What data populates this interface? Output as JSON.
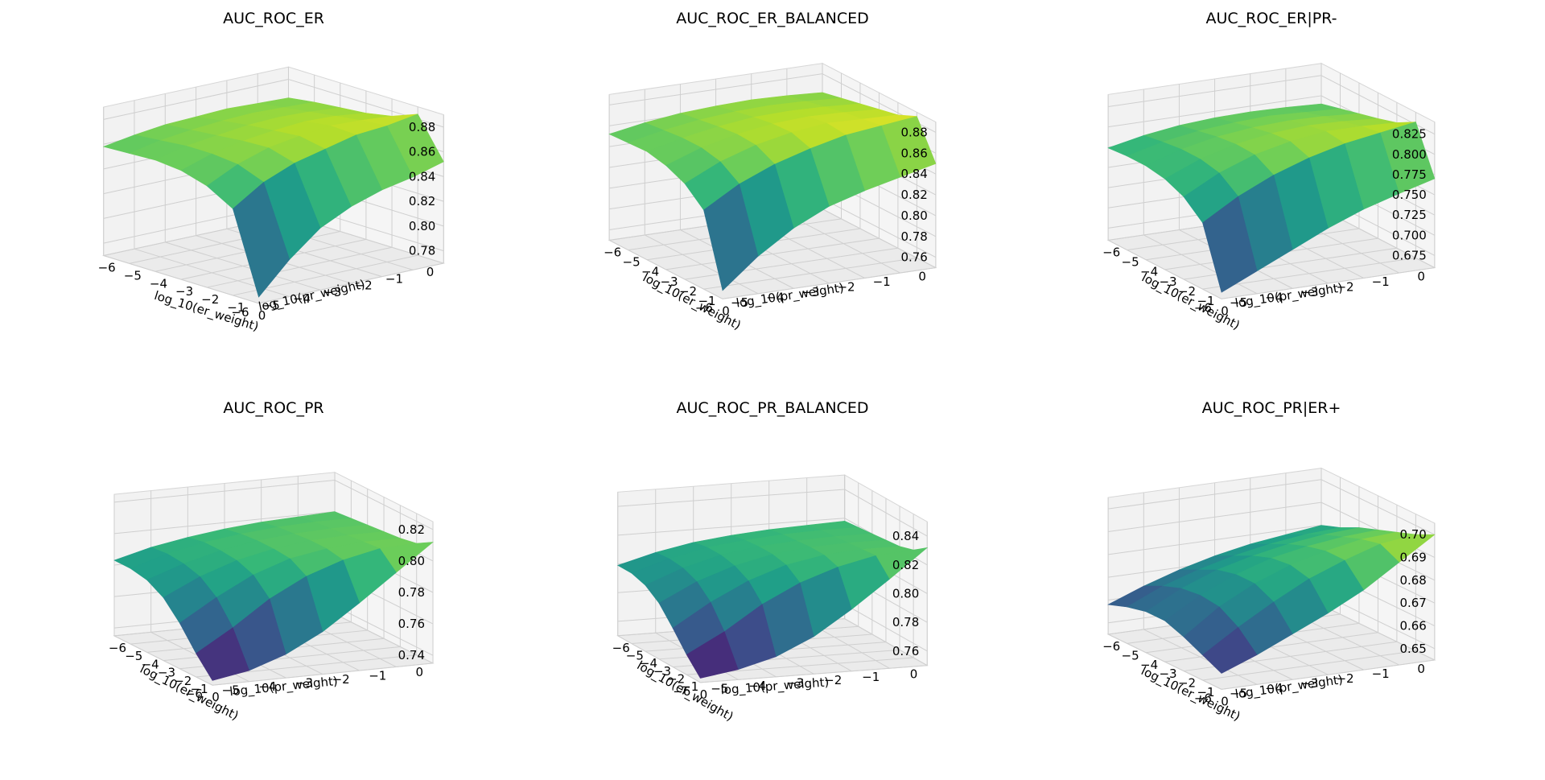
{
  "chart_data": [
    {
      "type": "surface",
      "title": "AUC_ROC_ER",
      "xlabel": "log_10(er_weight)",
      "ylabel": "log_10(pr_weight)",
      "x_ticks": [
        -6,
        -5,
        -4,
        -3,
        -2,
        -1,
        0
      ],
      "y_ticks": [
        0,
        -1,
        -2,
        -3,
        -4,
        -5,
        -6
      ],
      "z_ticks": [
        0.78,
        0.8,
        0.82,
        0.84,
        0.86,
        0.88
      ],
      "zlim": [
        0.77,
        0.89
      ],
      "grid": true,
      "colormap": "viridis",
      "x": [
        -6,
        -5,
        -4,
        -3,
        -2,
        -1,
        0
      ],
      "y": [
        0,
        -1,
        -2,
        -3,
        -4,
        -5,
        -6
      ],
      "z": [
        [
          0.865,
          0.868,
          0.87,
          0.872,
          0.876,
          0.884,
          0.852
        ],
        [
          0.866,
          0.869,
          0.872,
          0.875,
          0.878,
          0.88,
          0.845
        ],
        [
          0.867,
          0.87,
          0.873,
          0.876,
          0.879,
          0.878,
          0.84
        ],
        [
          0.866,
          0.869,
          0.872,
          0.874,
          0.876,
          0.872,
          0.832
        ],
        [
          0.865,
          0.867,
          0.869,
          0.871,
          0.872,
          0.866,
          0.82
        ],
        [
          0.862,
          0.864,
          0.866,
          0.866,
          0.864,
          0.856,
          0.8
        ],
        [
          0.858,
          0.859,
          0.86,
          0.858,
          0.852,
          0.84,
          0.775
        ]
      ]
    },
    {
      "type": "surface",
      "title": "AUC_ROC_ER_BALANCED",
      "xlabel": "log_10(er_weight)",
      "ylabel": "log_10(pr_weight)",
      "x_ticks": [
        -6,
        -5,
        -4,
        -3,
        -2,
        -1,
        0
      ],
      "y_ticks": [
        0,
        -1,
        -2,
        -3,
        -4,
        -5,
        -6
      ],
      "z_ticks": [
        0.76,
        0.78,
        0.8,
        0.82,
        0.84,
        0.86,
        0.88
      ],
      "zlim": [
        0.75,
        0.89
      ],
      "grid": true,
      "colormap": "viridis",
      "x": [
        -6,
        -5,
        -4,
        -3,
        -2,
        -1,
        0
      ],
      "y": [
        0,
        -1,
        -2,
        -3,
        -4,
        -5,
        -6
      ],
      "z": [
        [
          0.862,
          0.866,
          0.87,
          0.874,
          0.878,
          0.886,
          0.85
        ],
        [
          0.864,
          0.868,
          0.872,
          0.876,
          0.879,
          0.882,
          0.842
        ],
        [
          0.865,
          0.869,
          0.873,
          0.877,
          0.88,
          0.878,
          0.834
        ],
        [
          0.864,
          0.868,
          0.872,
          0.875,
          0.876,
          0.87,
          0.824
        ],
        [
          0.862,
          0.865,
          0.868,
          0.87,
          0.869,
          0.86,
          0.808
        ],
        [
          0.858,
          0.86,
          0.862,
          0.862,
          0.858,
          0.846,
          0.786
        ],
        [
          0.852,
          0.853,
          0.854,
          0.85,
          0.842,
          0.826,
          0.758
        ]
      ]
    },
    {
      "type": "surface",
      "title": "AUC_ROC_ER|PR-",
      "xlabel": "log_10(er_weight)",
      "ylabel": "log_10(pr_weight)",
      "x_ticks": [
        -6,
        -5,
        -4,
        -3,
        -2,
        -1,
        0
      ],
      "y_ticks": [
        0,
        -1,
        -2,
        -3,
        -4,
        -5,
        -6
      ],
      "z_ticks": [
        0.675,
        0.7,
        0.725,
        0.75,
        0.775,
        0.8,
        0.825
      ],
      "zlim": [
        0.66,
        0.84
      ],
      "grid": true,
      "colormap": "viridis",
      "x": [
        -6,
        -5,
        -4,
        -3,
        -2,
        -1,
        0
      ],
      "y": [
        0,
        -1,
        -2,
        -3,
        -4,
        -5,
        -6
      ],
      "z": [
        [
          0.79,
          0.796,
          0.802,
          0.808,
          0.815,
          0.828,
          0.77
        ],
        [
          0.792,
          0.798,
          0.805,
          0.811,
          0.817,
          0.821,
          0.758
        ],
        [
          0.793,
          0.8,
          0.806,
          0.812,
          0.817,
          0.814,
          0.745
        ],
        [
          0.792,
          0.798,
          0.804,
          0.809,
          0.811,
          0.803,
          0.728
        ],
        [
          0.789,
          0.794,
          0.799,
          0.802,
          0.801,
          0.788,
          0.708
        ],
        [
          0.783,
          0.787,
          0.79,
          0.79,
          0.785,
          0.768,
          0.688
        ],
        [
          0.774,
          0.776,
          0.776,
          0.772,
          0.762,
          0.742,
          0.668
        ]
      ]
    },
    {
      "type": "surface",
      "title": "AUC_ROC_PR",
      "xlabel": "log_10(er_weight)",
      "ylabel": "log_10(pr_weight)",
      "x_ticks": [
        -6,
        -5,
        -4,
        -3,
        -2,
        -1,
        0
      ],
      "y_ticks": [
        0,
        -1,
        -2,
        -3,
        -4,
        -5,
        -6
      ],
      "z_ticks": [
        0.74,
        0.76,
        0.78,
        0.8,
        0.82
      ],
      "zlim": [
        0.735,
        0.825
      ],
      "grid": true,
      "colormap": "viridis",
      "x": [
        -6,
        -5,
        -4,
        -3,
        -2,
        -1,
        0
      ],
      "y": [
        0,
        -1,
        -2,
        -3,
        -4,
        -5,
        -6
      ],
      "z": [
        [
          0.8,
          0.801,
          0.802,
          0.803,
          0.804,
          0.806,
          0.812
        ],
        [
          0.799,
          0.801,
          0.802,
          0.803,
          0.804,
          0.805,
          0.795
        ],
        [
          0.798,
          0.8,
          0.801,
          0.802,
          0.802,
          0.8,
          0.778
        ],
        [
          0.796,
          0.798,
          0.799,
          0.799,
          0.798,
          0.792,
          0.762
        ],
        [
          0.793,
          0.795,
          0.795,
          0.794,
          0.79,
          0.78,
          0.75
        ],
        [
          0.789,
          0.79,
          0.789,
          0.786,
          0.778,
          0.764,
          0.742
        ],
        [
          0.783,
          0.783,
          0.781,
          0.775,
          0.764,
          0.75,
          0.738
        ]
      ]
    },
    {
      "type": "surface",
      "title": "AUC_ROC_PR_BALANCED",
      "xlabel": "log_10(er_weight)",
      "ylabel": "log_10(pr_weight)",
      "x_ticks": [
        -6,
        -5,
        -4,
        -3,
        -2,
        -1,
        0
      ],
      "y_ticks": [
        0,
        -1,
        -2,
        -3,
        -4,
        -5,
        -6
      ],
      "z_ticks": [
        0.76,
        0.78,
        0.8,
        0.82,
        0.84
      ],
      "zlim": [
        0.75,
        0.85
      ],
      "grid": true,
      "colormap": "viridis",
      "x": [
        -6,
        -5,
        -4,
        -3,
        -2,
        -1,
        0
      ],
      "y": [
        0,
        -1,
        -2,
        -3,
        -4,
        -5,
        -6
      ],
      "z": [
        [
          0.818,
          0.819,
          0.82,
          0.821,
          0.822,
          0.825,
          0.832
        ],
        [
          0.817,
          0.819,
          0.82,
          0.821,
          0.822,
          0.823,
          0.812
        ],
        [
          0.816,
          0.818,
          0.819,
          0.82,
          0.82,
          0.817,
          0.793
        ],
        [
          0.814,
          0.816,
          0.817,
          0.817,
          0.815,
          0.808,
          0.776
        ],
        [
          0.811,
          0.813,
          0.813,
          0.811,
          0.806,
          0.795,
          0.764
        ],
        [
          0.806,
          0.807,
          0.806,
          0.802,
          0.793,
          0.778,
          0.757
        ],
        [
          0.799,
          0.799,
          0.796,
          0.789,
          0.777,
          0.764,
          0.753
        ]
      ]
    },
    {
      "type": "surface",
      "title": "AUC_ROC_PR|ER+",
      "xlabel": "log_10(er_weight)",
      "ylabel": "log_10(pr_weight)",
      "x_ticks": [
        -6,
        -5,
        -4,
        -3,
        -2,
        -1,
        0
      ],
      "y_ticks": [
        0,
        -1,
        -2,
        -3,
        -4,
        -5,
        -6
      ],
      "z_ticks": [
        0.65,
        0.66,
        0.67,
        0.68,
        0.69,
        0.7
      ],
      "zlim": [
        0.645,
        0.705
      ],
      "grid": true,
      "colormap": "viridis",
      "x": [
        -6,
        -5,
        -4,
        -3,
        -2,
        -1,
        0
      ],
      "y": [
        0,
        -1,
        -2,
        -3,
        -4,
        -5,
        -6
      ],
      "z": [
        [
          0.68,
          0.683,
          0.687,
          0.69,
          0.693,
          0.696,
          0.7
        ],
        [
          0.678,
          0.682,
          0.686,
          0.689,
          0.692,
          0.694,
          0.69
        ],
        [
          0.676,
          0.68,
          0.684,
          0.687,
          0.689,
          0.689,
          0.68
        ],
        [
          0.673,
          0.677,
          0.681,
          0.684,
          0.685,
          0.683,
          0.672
        ],
        [
          0.669,
          0.673,
          0.677,
          0.679,
          0.679,
          0.675,
          0.665
        ],
        [
          0.664,
          0.668,
          0.671,
          0.672,
          0.671,
          0.666,
          0.658
        ],
        [
          0.658,
          0.661,
          0.663,
          0.663,
          0.66,
          0.656,
          0.652
        ]
      ]
    }
  ]
}
